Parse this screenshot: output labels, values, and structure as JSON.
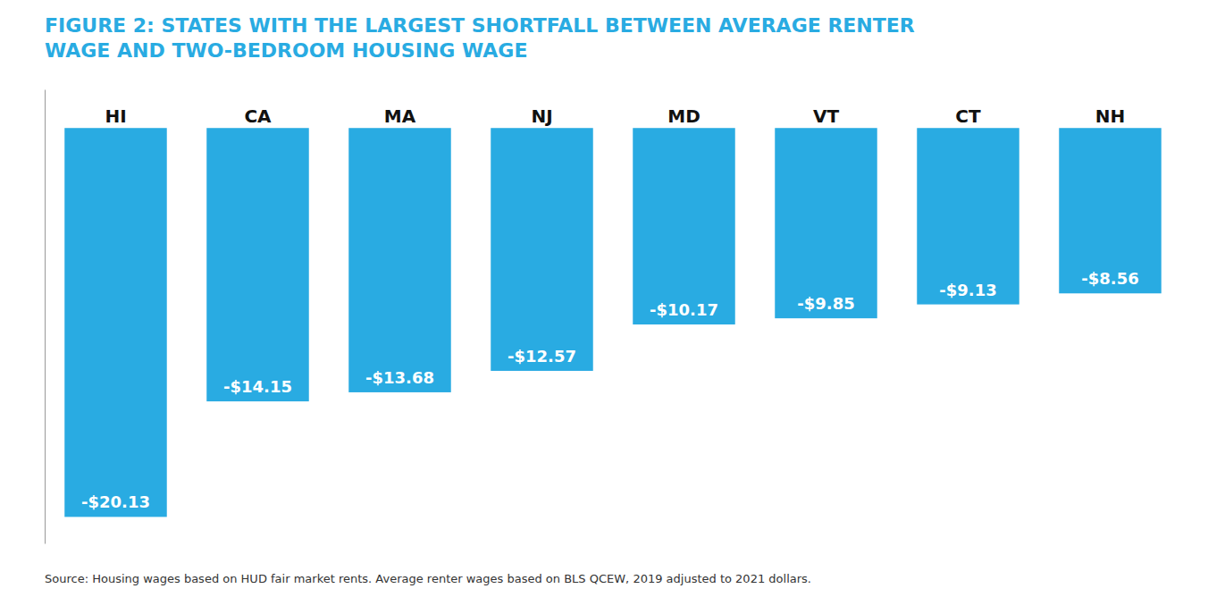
{
  "chart_data": {
    "type": "bar",
    "title": "FIGURE 2: STATES WITH THE LARGEST SHORTFALL BETWEEN AVERAGE RENTER\nWAGE AND TWO-BEDROOM HOUSING WAGE",
    "categories": [
      "HI",
      "CA",
      "MA",
      "NJ",
      "MD",
      "VT",
      "CT",
      "NH"
    ],
    "values": [
      -20.13,
      -14.15,
      -13.68,
      -12.57,
      -10.17,
      -9.85,
      -9.13,
      -8.56
    ],
    "value_labels": [
      "-$20.13",
      "-$14.15",
      "-$13.68",
      "-$12.57",
      "-$10.17",
      "-$9.85",
      "-$9.13",
      "-$8.56"
    ],
    "data_labels": true,
    "color": "#29ABE2",
    "ylim": [
      -21.5,
      2.0
    ],
    "tick_labels": false,
    "grid": false,
    "annotations": [
      "Source: Housing wages based on HUD fair market rents. Average renter wages based on BLS QCEW, 2019 adjusted to 2021 dollars."
    ]
  }
}
